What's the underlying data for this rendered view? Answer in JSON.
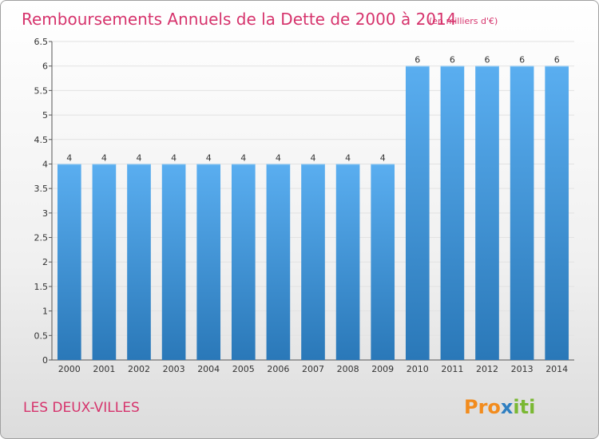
{
  "header": {
    "title": "Remboursements Annuels de la Dette de 2000 à 2014",
    "subtitle": "(en milliers d'€)"
  },
  "footer": {
    "place": "LES DEUX-VILLES",
    "brand": {
      "p1": "Pro",
      "p2": "x",
      "p3": "iti"
    }
  },
  "colors": {
    "title": "#d6336c",
    "bar_top": "#5aaef0",
    "bar_bottom": "#2a78b8",
    "brand_orange": "#f28c1e",
    "brand_blue": "#2f7fc1",
    "brand_green": "#7ab833"
  },
  "chart_data": {
    "type": "bar",
    "categories": [
      "2000",
      "2001",
      "2002",
      "2003",
      "2004",
      "2005",
      "2006",
      "2007",
      "2008",
      "2009",
      "2010",
      "2011",
      "2012",
      "2013",
      "2014"
    ],
    "values": [
      4,
      4,
      4,
      4,
      4,
      4,
      4,
      4,
      4,
      4,
      6,
      6,
      6,
      6,
      6
    ],
    "data_labels": [
      "4",
      "4",
      "4",
      "4",
      "4",
      "4",
      "4",
      "4",
      "4",
      "4",
      "6",
      "6",
      "6",
      "6",
      "6"
    ],
    "ylim": [
      0,
      6.5
    ],
    "yticks": [
      "0",
      "0.5",
      "1",
      "1.5",
      "2",
      "2.5",
      "3",
      "3.5",
      "4",
      "4.5",
      "5",
      "5.5",
      "6",
      "6.5"
    ],
    "grid": true
  }
}
